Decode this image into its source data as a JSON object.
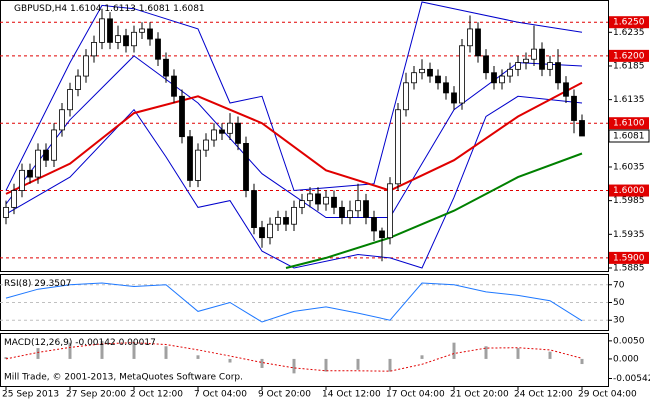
{
  "chart_data": {
    "type": "candlestick",
    "symbol": "GBPUSD,H4",
    "footer": "Mill Trade, © 2001-2013, MetaQuotes Software Corp.",
    "xlim": [
      -0.75,
      75.25
    ],
    "xticks": [
      {
        "value": 0,
        "label": "25 Sep 2013"
      },
      {
        "value": 8,
        "label": "27 Sep 20:00"
      },
      {
        "value": 16,
        "label": "2 Oct 12:00"
      },
      {
        "value": 24,
        "label": "7 Oct 04:00"
      },
      {
        "value": 32,
        "label": "9 Oct 20:00"
      },
      {
        "value": 40,
        "label": "14 Oct 12:00"
      },
      {
        "value": 48,
        "label": "17 Oct 04:00"
      },
      {
        "value": 56,
        "label": "21 Oct 20:00"
      },
      {
        "value": 64,
        "label": "24 Oct 12:00"
      },
      {
        "value": 72,
        "label": "29 Oct 04:00"
      }
    ],
    "open": [
      1.596,
      1.5975,
      1.6,
      1.603,
      1.602,
      1.606,
      1.6045,
      1.609,
      1.612,
      1.615,
      1.617,
      1.62,
      1.622,
      1.6255,
      1.622,
      1.623,
      1.6215,
      1.6235,
      1.624,
      1.6225,
      1.6195,
      1.617,
      1.614,
      1.608,
      1.6015,
      1.606,
      1.6075,
      1.609,
      1.6085,
      1.61,
      1.607,
      1.6,
      1.5945,
      1.593,
      1.595,
      1.596,
      1.595,
      1.5975,
      1.5985,
      1.5995,
      1.598,
      1.599,
      1.5975,
      1.596,
      1.597,
      1.5985,
      1.596,
      1.594,
      1.593,
      1.601,
      1.612,
      1.616,
      1.6175,
      1.618,
      1.617,
      1.616,
      1.6145,
      1.613,
      1.6215,
      1.624,
      1.62,
      1.6175,
      1.616,
      1.617,
      1.618,
      1.619,
      1.6195,
      1.621,
      1.618,
      1.619,
      1.616,
      1.614,
      1.6104
    ],
    "high": [
      1.5985,
      1.601,
      1.604,
      1.604,
      1.607,
      1.607,
      1.61,
      1.613,
      1.616,
      1.618,
      1.621,
      1.623,
      1.627,
      1.6265,
      1.6245,
      1.624,
      1.6245,
      1.625,
      1.625,
      1.6235,
      1.6205,
      1.618,
      1.615,
      1.609,
      1.607,
      1.6085,
      1.61,
      1.61,
      1.6115,
      1.611,
      1.608,
      1.601,
      1.5955,
      1.596,
      1.597,
      1.597,
      1.5985,
      1.5995,
      1.6005,
      1.6005,
      1.6,
      1.6,
      1.5985,
      1.5985,
      1.601,
      1.5995,
      1.597,
      1.5945,
      1.602,
      1.613,
      1.6175,
      1.6185,
      1.6195,
      1.619,
      1.618,
      1.617,
      1.6155,
      1.6225,
      1.626,
      1.625,
      1.621,
      1.6185,
      1.618,
      1.619,
      1.62,
      1.6205,
      1.6245,
      1.622,
      1.62,
      1.621,
      1.617,
      1.615,
      1.6113
    ],
    "low": [
      1.595,
      1.5965,
      1.599,
      1.601,
      1.601,
      1.6035,
      1.6035,
      1.608,
      1.611,
      1.614,
      1.616,
      1.619,
      1.621,
      1.621,
      1.621,
      1.6205,
      1.6205,
      1.6225,
      1.6215,
      1.6185,
      1.616,
      1.613,
      1.607,
      1.6005,
      1.6005,
      1.605,
      1.6065,
      1.6075,
      1.6075,
      1.606,
      1.599,
      1.5935,
      1.5915,
      1.592,
      1.594,
      1.594,
      1.594,
      1.5965,
      1.5975,
      1.597,
      1.597,
      1.5965,
      1.595,
      1.595,
      1.596,
      1.595,
      1.5925,
      1.5895,
      1.592,
      1.6,
      1.611,
      1.615,
      1.6165,
      1.616,
      1.615,
      1.6135,
      1.612,
      1.612,
      1.6205,
      1.619,
      1.6165,
      1.615,
      1.615,
      1.616,
      1.617,
      1.618,
      1.6185,
      1.617,
      1.617,
      1.615,
      1.613,
      1.6085,
      1.6081
    ],
    "close": [
      1.5975,
      1.6,
      1.603,
      1.602,
      1.606,
      1.6045,
      1.609,
      1.612,
      1.615,
      1.617,
      1.62,
      1.622,
      1.6255,
      1.622,
      1.623,
      1.6215,
      1.6235,
      1.624,
      1.6225,
      1.6195,
      1.617,
      1.614,
      1.608,
      1.6015,
      1.606,
      1.6075,
      1.609,
      1.6085,
      1.61,
      1.607,
      1.6,
      1.5945,
      1.593,
      1.595,
      1.596,
      1.595,
      1.5975,
      1.5985,
      1.5995,
      1.598,
      1.599,
      1.5975,
      1.596,
      1.597,
      1.5985,
      1.596,
      1.594,
      1.593,
      1.601,
      1.612,
      1.616,
      1.6175,
      1.618,
      1.617,
      1.616,
      1.6145,
      1.613,
      1.6215,
      1.624,
      1.62,
      1.6175,
      1.616,
      1.617,
      1.618,
      1.619,
      1.6195,
      1.621,
      1.618,
      1.619,
      1.616,
      1.614,
      1.6104,
      1.6081
    ],
    "up_color": "#ffffff",
    "down_color": "#000000",
    "ylim": [
      1.5882,
      1.628
    ],
    "yticks": [
      1.6235,
      1.6185,
      1.6135,
      1.6085,
      1.6035,
      1.5985,
      1.5935,
      1.5885
    ],
    "levels": [
      {
        "value": 1.625,
        "label": "1.6250"
      },
      {
        "value": 1.62,
        "label": "1.6200"
      },
      {
        "value": 1.61,
        "label": "1.6100"
      },
      {
        "value": 1.6,
        "label": "1.6000"
      },
      {
        "value": 1.59,
        "label": "1.5900"
      }
    ],
    "level_color": "#e00000",
    "overlays": [
      {
        "color": "#0000cc",
        "x": [
          0,
          8,
          12,
          16,
          24,
          28,
          32,
          36,
          46,
          52,
          56,
          64,
          72
        ],
        "values": [
          1.6,
          1.619,
          1.6275,
          1.627,
          1.624,
          1.613,
          1.614,
          1.6,
          1.601,
          1.628,
          1.627,
          1.625,
          1.6235
        ]
      },
      {
        "color": "#0000cc",
        "x": [
          0,
          8,
          16,
          24,
          32,
          40,
          48,
          56,
          64,
          72
        ],
        "values": [
          1.598,
          1.6105,
          1.62,
          1.613,
          1.6025,
          1.596,
          1.596,
          1.612,
          1.619,
          1.6185
        ]
      },
      {
        "color": "#0000cc",
        "x": [
          0,
          8,
          16,
          20,
          24,
          28,
          32,
          36,
          44,
          48,
          52,
          56,
          60,
          64,
          72
        ],
        "values": [
          1.5965,
          1.602,
          1.612,
          1.605,
          1.5975,
          1.5985,
          1.591,
          1.5885,
          1.5905,
          1.59,
          1.5885,
          1.599,
          1.611,
          1.614,
          1.613
        ]
      },
      {
        "color": "#e00000",
        "x": [
          0,
          8,
          16,
          24,
          32,
          40,
          48,
          56,
          64,
          72
        ],
        "values": [
          1.5995,
          1.604,
          1.6115,
          1.614,
          1.61,
          1.603,
          1.6,
          1.6045,
          1.611,
          1.616
        ]
      },
      {
        "color": "#008000",
        "x": [
          35,
          40,
          48,
          56,
          64,
          72
        ],
        "values": [
          1.5885,
          1.59,
          1.593,
          1.597,
          1.602,
          1.6055
        ]
      }
    ],
    "rsi": {
      "label": "RSI(8)",
      "color": "#1e78ff",
      "x": [
        0,
        4,
        8,
        12,
        16,
        20,
        24,
        28,
        32,
        36,
        40,
        44,
        48,
        52,
        56,
        60,
        64,
        68,
        72
      ],
      "values": [
        55,
        65,
        70,
        72,
        68,
        70,
        40,
        50,
        28,
        40,
        45,
        38,
        30,
        72,
        70,
        62,
        58,
        52,
        29.3507
      ],
      "ylim": [
        19,
        81
      ],
      "yticks": [
        70,
        50,
        30
      ],
      "grid": true
    },
    "macd": {
      "label": "MACD(12,26,9)",
      "histogram_color": "#a0a0a0",
      "signal_color": "#e00000",
      "x": [
        0,
        4,
        8,
        12,
        16,
        20,
        24,
        28,
        32,
        36,
        40,
        44,
        48,
        52,
        56,
        60,
        64,
        68,
        72
      ],
      "histogram": [
        0.0005,
        0.003,
        0.0045,
        0.005,
        0.0045,
        0.0035,
        0.001,
        -0.001,
        -0.0025,
        -0.004,
        -0.0035,
        -0.003,
        -0.0035,
        0.001,
        0.0045,
        0.0035,
        0.003,
        0.002,
        -0.00142
      ],
      "signal": [
        0.0,
        0.0018,
        0.0032,
        0.0042,
        0.0045,
        0.004,
        0.0025,
        0.0008,
        -0.001,
        -0.0025,
        -0.0033,
        -0.0033,
        -0.0034,
        -0.0015,
        0.0015,
        0.003,
        0.0031,
        0.0025,
        0.00017
      ],
      "ylim": [
        -0.0075,
        0.0069
      ],
      "yticks": [
        {
          "value": 0.005,
          "label": "0.0050"
        },
        {
          "value": 0,
          "label": "0.000"
        },
        -0.00542
      ]
    }
  }
}
